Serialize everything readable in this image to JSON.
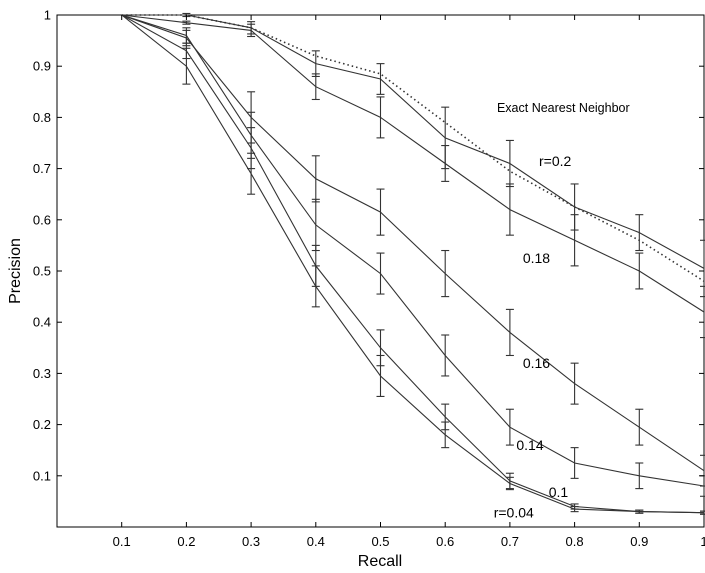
{
  "chart_data": {
    "type": "line",
    "title": "",
    "xlabel": "Recall",
    "ylabel": "Precision",
    "xlim": [
      0,
      1
    ],
    "ylim": [
      0,
      1
    ],
    "x": [
      0.1,
      0.2,
      0.3,
      0.4,
      0.5,
      0.6,
      0.7,
      0.8,
      0.9,
      1.0
    ],
    "xticks": [
      "0.1",
      "0.2",
      "0.3",
      "0.4",
      "0.5",
      "0.6",
      "0.7",
      "0.8",
      "0.9",
      "1"
    ],
    "yticks": [
      "0.1",
      "0.2",
      "0.3",
      "0.4",
      "0.5",
      "0.6",
      "0.7",
      "0.8",
      "0.9",
      "1"
    ],
    "grid": false,
    "series": [
      {
        "name": "Exact Nearest Neighbor",
        "style": "dotted",
        "values": [
          1.0,
          1.0,
          0.975,
          0.92,
          0.885,
          0.79,
          0.695,
          0.625,
          0.56,
          0.48
        ]
      },
      {
        "name": "r=0.2",
        "values": [
          1.0,
          1.0,
          0.975,
          0.905,
          0.875,
          0.76,
          0.71,
          0.625,
          0.575,
          0.505
        ],
        "err": [
          0.0,
          0.003,
          0.012,
          0.025,
          0.03,
          0.06,
          0.045,
          0.045,
          0.035,
          0.055
        ]
      },
      {
        "name": "0.18",
        "values": [
          1.0,
          0.985,
          0.97,
          0.86,
          0.8,
          0.71,
          0.62,
          0.56,
          0.5,
          0.42
        ],
        "err": [
          0.0,
          0.003,
          0.012,
          0.025,
          0.04,
          0.035,
          0.05,
          0.05,
          0.035,
          0.05
        ]
      },
      {
        "name": "0.16",
        "values": [
          1.0,
          0.955,
          0.8,
          0.68,
          0.615,
          0.495,
          0.38,
          0.28,
          0.195,
          0.11
        ],
        "err": [
          0.0,
          0.015,
          0.05,
          0.045,
          0.045,
          0.045,
          0.045,
          0.04,
          0.035,
          0.03
        ]
      },
      {
        "name": "0.14",
        "values": [
          1.0,
          0.96,
          0.765,
          0.59,
          0.495,
          0.335,
          0.195,
          0.125,
          0.1,
          0.08
        ],
        "err": [
          0.0,
          0.015,
          0.045,
          0.05,
          0.04,
          0.04,
          0.035,
          0.03,
          0.025,
          0.02
        ]
      },
      {
        "name": "0.1",
        "values": [
          1.0,
          0.93,
          0.74,
          0.51,
          0.35,
          0.215,
          0.09,
          0.04,
          0.03,
          0.028
        ],
        "err": [
          0.0,
          0.015,
          0.04,
          0.04,
          0.035,
          0.025,
          0.015,
          0.005,
          0.003,
          0.003
        ]
      },
      {
        "name": "r=0.04",
        "values": [
          1.0,
          0.9,
          0.69,
          0.47,
          0.295,
          0.18,
          0.085,
          0.035,
          0.03,
          0.028
        ],
        "err": [
          0.0,
          0.035,
          0.04,
          0.04,
          0.04,
          0.025,
          0.012,
          0.005,
          0.003,
          0.003
        ]
      }
    ],
    "annotations": [
      {
        "text": "Exact Nearest Neighbor",
        "x": 0.68,
        "y": 0.82
      },
      {
        "text": "r=0.2",
        "x": 0.745,
        "y": 0.715
      },
      {
        "text": "0.18",
        "x": 0.72,
        "y": 0.525
      },
      {
        "text": "0.16",
        "x": 0.72,
        "y": 0.32
      },
      {
        "text": "0.14",
        "x": 0.71,
        "y": 0.16
      },
      {
        "text": "0.1",
        "x": 0.76,
        "y": 0.068
      },
      {
        "text": "r=0.04",
        "x": 0.675,
        "y": 0.028
      }
    ]
  }
}
